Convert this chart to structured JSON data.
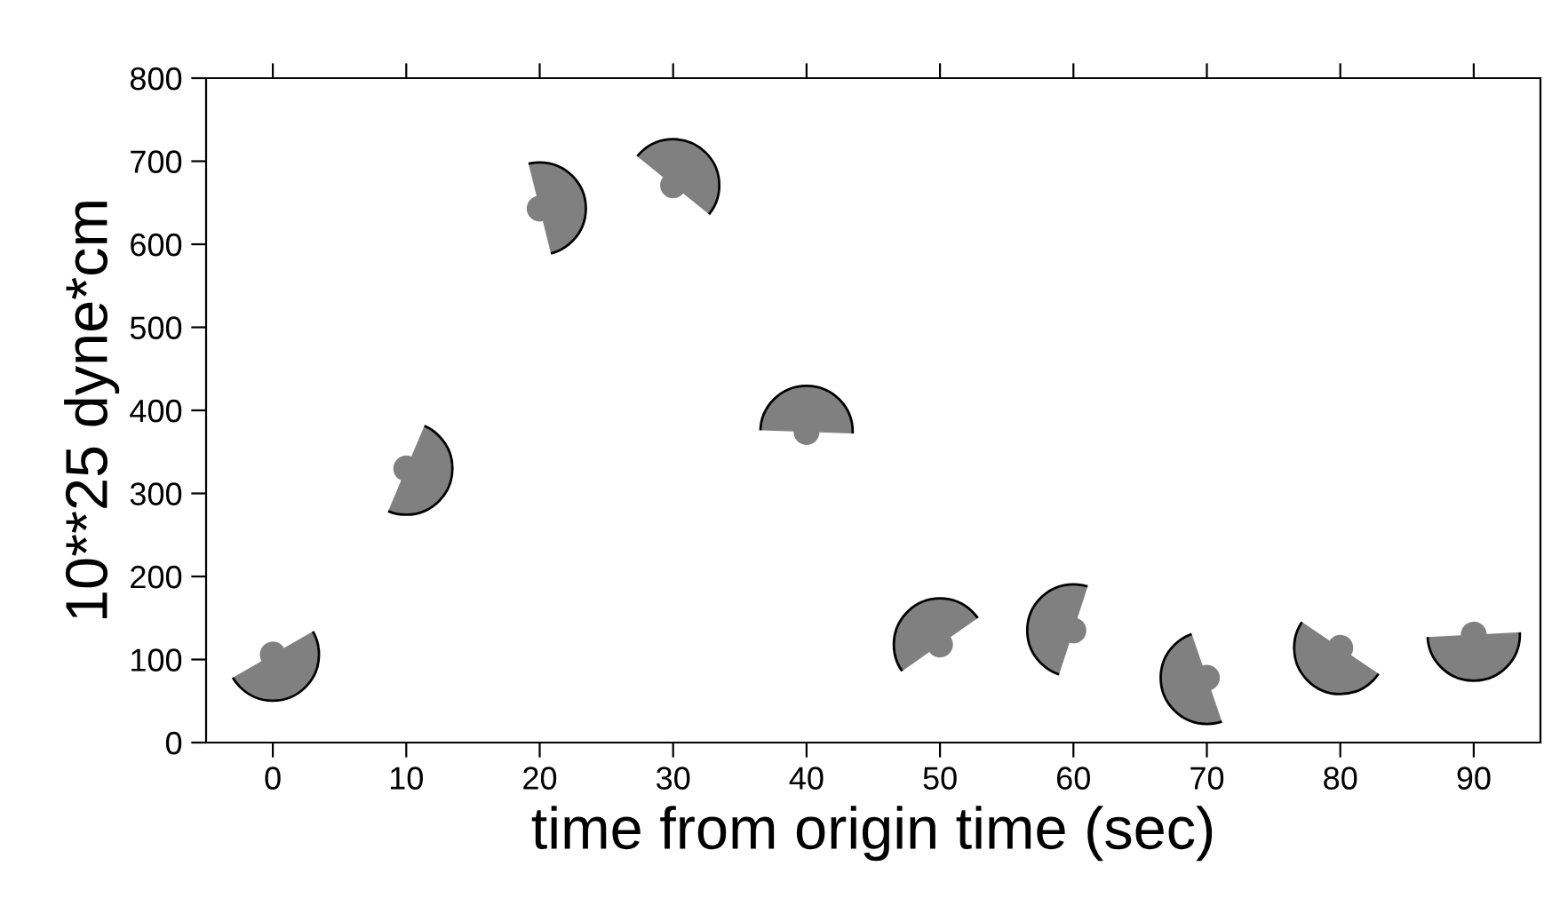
{
  "chart_data": {
    "type": "scatter",
    "xlabel": "time from origin time (sec)",
    "ylabel": "10**25 dyne*cm",
    "x": [
      0,
      10,
      20,
      30,
      40,
      50,
      60,
      70,
      80,
      90
    ],
    "series": [
      {
        "color": "#808080",
        "values": [
          106,
          330,
          643,
          671,
          374,
          118,
          135,
          78,
          114,
          130
        ]
      }
    ],
    "marker": "circle",
    "xlim": [
      -5,
      95
    ],
    "ylim": [
      0,
      800
    ],
    "xticks": [
      0,
      10,
      20,
      30,
      40,
      50,
      60,
      70,
      80,
      90
    ],
    "yticks": [
      0,
      100,
      200,
      300,
      400,
      500,
      600,
      700,
      800
    ],
    "grid": false,
    "legend": false
  }
}
